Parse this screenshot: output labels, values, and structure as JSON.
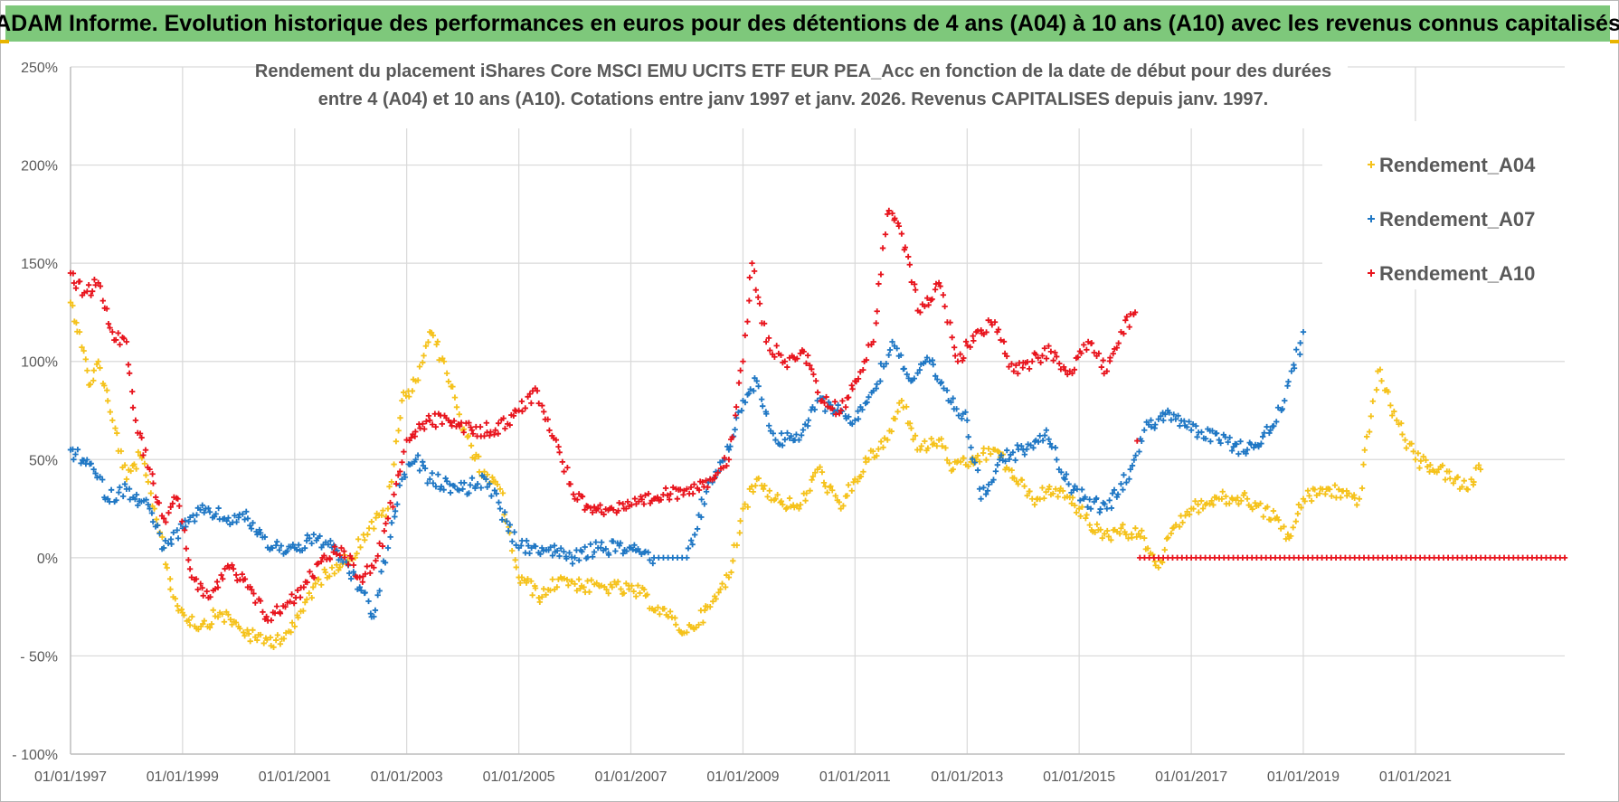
{
  "banner": {
    "text": "ADAM Informe. Evolution historique des performances en euros pour des détentions de 4 ans (A04) à 10 ans (A10) avec les revenus connus capitalisés"
  },
  "chart_data": {
    "type": "scatter",
    "title_lines": [
      "Rendement du placement iShares Core MSCI EMU UCITS ETF EUR PEA_Acc en fonction de la date de début pour des durées",
      "entre 4 (A04) et 10 ans (A10). Cotations entre janv 1997 et janv. 2026. Revenus CAPITALISES depuis janv. 1997."
    ],
    "xlabel": "",
    "ylabel": "",
    "xlim": [
      "1997-01-01",
      "2023-09-01"
    ],
    "ylim": [
      -100,
      250
    ],
    "x_tick_labels": [
      "01/01/1997",
      "01/01/1999",
      "01/01/2001",
      "01/01/2003",
      "01/01/2005",
      "01/01/2007",
      "01/01/2009",
      "01/01/2011",
      "01/01/2013",
      "01/01/2015",
      "01/01/2017",
      "01/01/2019",
      "01/01/2021"
    ],
    "y_tick_labels": [
      "- 100%",
      "- 50%",
      "0%",
      "50%",
      "100%",
      "150%",
      "200%",
      "250%"
    ],
    "y_tick_values": [
      -100,
      -50,
      0,
      50,
      100,
      150,
      200,
      250
    ],
    "grid": true,
    "legend_position": "top-right",
    "series": [
      {
        "name": "Rendement_A04",
        "color": "#f5c21b",
        "points": [
          [
            "1997-01-01",
            130
          ],
          [
            "1997-03-01",
            115
          ],
          [
            "1997-05-01",
            88
          ],
          [
            "1997-07-01",
            100
          ],
          [
            "1997-10-01",
            70
          ],
          [
            "1998-01-01",
            40
          ],
          [
            "1998-04-01",
            52
          ],
          [
            "1998-07-01",
            25
          ],
          [
            "1998-09-01",
            5
          ],
          [
            "1998-11-01",
            -20
          ],
          [
            "1999-01-01",
            -28
          ],
          [
            "1999-05-01",
            -35
          ],
          [
            "1999-09-01",
            -28
          ],
          [
            "2000-01-01",
            -35
          ],
          [
            "2000-05-01",
            -42
          ],
          [
            "2000-09-01",
            -42
          ],
          [
            "2001-01-01",
            -35
          ],
          [
            "2001-05-01",
            -15
          ],
          [
            "2001-09-01",
            -5
          ],
          [
            "2002-01-01",
            0
          ],
          [
            "2002-05-01",
            15
          ],
          [
            "2002-09-01",
            25
          ],
          [
            "2002-12-01",
            80
          ],
          [
            "2003-03-01",
            90
          ],
          [
            "2003-06-01",
            115
          ],
          [
            "2003-09-01",
            100
          ],
          [
            "2004-01-01",
            65
          ],
          [
            "2004-06-01",
            40
          ],
          [
            "2004-09-01",
            35
          ],
          [
            "2005-01-01",
            -10
          ],
          [
            "2005-06-01",
            -20
          ],
          [
            "2005-10-01",
            -10
          ],
          [
            "2006-03-01",
            -15
          ],
          [
            "2006-09-01",
            -15
          ],
          [
            "2007-03-01",
            -18
          ],
          [
            "2007-09-01",
            -30
          ],
          [
            "2008-01-01",
            -38
          ],
          [
            "2008-06-01",
            -25
          ],
          [
            "2008-10-01",
            -10
          ],
          [
            "2009-01-01",
            25
          ],
          [
            "2009-04-01",
            40
          ],
          [
            "2009-08-01",
            30
          ],
          [
            "2010-01-01",
            25
          ],
          [
            "2010-05-01",
            45
          ],
          [
            "2010-10-01",
            25
          ],
          [
            "2011-01-01",
            40
          ],
          [
            "2011-04-01",
            50
          ],
          [
            "2011-08-01",
            60
          ],
          [
            "2011-11-01",
            80
          ],
          [
            "2012-03-01",
            55
          ],
          [
            "2012-07-01",
            60
          ],
          [
            "2012-10-01",
            45
          ],
          [
            "2013-03-01",
            50
          ],
          [
            "2013-07-01",
            55
          ],
          [
            "2013-10-01",
            45
          ],
          [
            "2014-03-01",
            30
          ],
          [
            "2014-08-01",
            35
          ],
          [
            "2015-01-01",
            25
          ],
          [
            "2015-06-01",
            10
          ],
          [
            "2015-10-01",
            15
          ],
          [
            "2016-03-01",
            10
          ],
          [
            "2016-06-01",
            -5
          ],
          [
            "2016-09-01",
            15
          ],
          [
            "2017-01-01",
            25
          ],
          [
            "2017-07-01",
            30
          ],
          [
            "2018-01-01",
            30
          ],
          [
            "2018-07-01",
            20
          ],
          [
            "2018-10-01",
            10
          ],
          [
            "2019-01-01",
            30
          ],
          [
            "2019-06-01",
            35
          ],
          [
            "2020-01-01",
            30
          ],
          [
            "2020-05-01",
            95
          ],
          [
            "2020-09-01",
            70
          ],
          [
            "2021-01-01",
            50
          ],
          [
            "2021-06-01",
            45
          ],
          [
            "2021-12-01",
            35
          ],
          [
            "2022-03-01",
            45
          ]
        ]
      },
      {
        "name": "Rendement_A07",
        "color": "#1f77c4",
        "points": [
          [
            "1997-01-01",
            55
          ],
          [
            "1997-06-01",
            45
          ],
          [
            "1997-09-01",
            30
          ],
          [
            "1998-01-01",
            35
          ],
          [
            "1998-06-01",
            25
          ],
          [
            "1998-09-01",
            5
          ],
          [
            "1999-01-01",
            15
          ],
          [
            "1999-06-01",
            25
          ],
          [
            "1999-10-01",
            20
          ],
          [
            "2000-03-01",
            20
          ],
          [
            "2000-08-01",
            5
          ],
          [
            "2001-01-01",
            5
          ],
          [
            "2001-06-01",
            10
          ],
          [
            "2001-11-01",
            0
          ],
          [
            "2002-03-01",
            -15
          ],
          [
            "2002-06-01",
            -30
          ],
          [
            "2002-09-01",
            5
          ],
          [
            "2002-12-01",
            40
          ],
          [
            "2003-03-01",
            50
          ],
          [
            "2003-06-01",
            40
          ],
          [
            "2004-01-01",
            35
          ],
          [
            "2004-06-01",
            40
          ],
          [
            "2004-09-01",
            25
          ],
          [
            "2005-01-01",
            5
          ],
          [
            "2005-06-01",
            5
          ],
          [
            "2006-01-01",
            0
          ],
          [
            "2006-06-01",
            5
          ],
          [
            "2007-01-01",
            5
          ],
          [
            "2007-06-01",
            0
          ],
          [
            "2008-01-01",
            0
          ],
          [
            "2008-06-01",
            40
          ],
          [
            "2008-10-01",
            55
          ],
          [
            "2009-01-01",
            80
          ],
          [
            "2009-04-01",
            90
          ],
          [
            "2009-08-01",
            60
          ],
          [
            "2010-01-01",
            60
          ],
          [
            "2010-05-01",
            80
          ],
          [
            "2010-10-01",
            75
          ],
          [
            "2011-01-01",
            70
          ],
          [
            "2011-05-01",
            85
          ],
          [
            "2011-09-01",
            110
          ],
          [
            "2012-01-01",
            90
          ],
          [
            "2012-05-01",
            100
          ],
          [
            "2012-09-01",
            80
          ],
          [
            "2013-01-01",
            70
          ],
          [
            "2013-04-01",
            30
          ],
          [
            "2013-08-01",
            50
          ],
          [
            "2014-01-01",
            55
          ],
          [
            "2014-06-01",
            65
          ],
          [
            "2014-10-01",
            40
          ],
          [
            "2015-02-01",
            30
          ],
          [
            "2015-07-01",
            25
          ],
          [
            "2015-12-01",
            45
          ],
          [
            "2016-03-01",
            65
          ],
          [
            "2016-08-01",
            75
          ],
          [
            "2017-01-01",
            65
          ],
          [
            "2017-07-01",
            60
          ],
          [
            "2018-01-01",
            55
          ],
          [
            "2018-06-01",
            65
          ],
          [
            "2018-09-01",
            80
          ],
          [
            "2019-01-01",
            115
          ]
        ]
      },
      {
        "name": "Rendement_A10",
        "color": "#e8141d",
        "points": [
          [
            "1997-01-01",
            145
          ],
          [
            "1997-04-01",
            135
          ],
          [
            "1997-07-01",
            140
          ],
          [
            "1997-10-01",
            115
          ],
          [
            "1998-01-01",
            110
          ],
          [
            "1998-03-01",
            70
          ],
          [
            "1998-06-01",
            45
          ],
          [
            "1998-09-01",
            20
          ],
          [
            "1998-12-01",
            30
          ],
          [
            "1999-03-01",
            -10
          ],
          [
            "1999-07-01",
            -20
          ],
          [
            "1999-11-01",
            -5
          ],
          [
            "2000-03-01",
            -15
          ],
          [
            "2000-07-01",
            -30
          ],
          [
            "2000-11-01",
            -25
          ],
          [
            "2001-03-01",
            -15
          ],
          [
            "2001-07-01",
            0
          ],
          [
            "2001-11-01",
            5
          ],
          [
            "2002-03-01",
            -10
          ],
          [
            "2002-06-01",
            -5
          ],
          [
            "2002-09-01",
            20
          ],
          [
            "2003-01-01",
            60
          ],
          [
            "2003-06-01",
            70
          ],
          [
            "2003-10-01",
            70
          ],
          [
            "2004-03-01",
            65
          ],
          [
            "2004-08-01",
            65
          ],
          [
            "2005-01-01",
            75
          ],
          [
            "2005-05-01",
            85
          ],
          [
            "2005-09-01",
            60
          ],
          [
            "2006-01-01",
            30
          ],
          [
            "2006-06-01",
            25
          ],
          [
            "2006-12-01",
            25
          ],
          [
            "2007-06-01",
            30
          ],
          [
            "2008-01-01",
            35
          ],
          [
            "2008-06-01",
            40
          ],
          [
            "2008-10-01",
            50
          ],
          [
            "2009-01-01",
            100
          ],
          [
            "2009-03-01",
            150
          ],
          [
            "2009-06-01",
            110
          ],
          [
            "2009-10-01",
            100
          ],
          [
            "2010-02-01",
            105
          ],
          [
            "2010-06-01",
            80
          ],
          [
            "2010-10-01",
            75
          ],
          [
            "2011-01-01",
            90
          ],
          [
            "2011-05-01",
            110
          ],
          [
            "2011-08-01",
            175
          ],
          [
            "2011-11-01",
            165
          ],
          [
            "2012-03-01",
            125
          ],
          [
            "2012-07-01",
            140
          ],
          [
            "2012-11-01",
            100
          ],
          [
            "2013-03-01",
            115
          ],
          [
            "2013-07-01",
            120
          ],
          [
            "2013-11-01",
            95
          ],
          [
            "2014-03-01",
            100
          ],
          [
            "2014-07-01",
            105
          ],
          [
            "2014-11-01",
            95
          ],
          [
            "2015-03-01",
            110
          ],
          [
            "2015-07-01",
            95
          ],
          [
            "2015-10-01",
            115
          ],
          [
            "2016-01-01",
            125
          ],
          [
            "2016-02-01",
            0
          ],
          [
            "2017-01-01",
            0
          ],
          [
            "2018-01-01",
            0
          ],
          [
            "2019-01-01",
            0
          ],
          [
            "2020-01-01",
            0
          ],
          [
            "2021-01-01",
            0
          ],
          [
            "2022-01-01",
            0
          ],
          [
            "2023-01-01",
            0
          ],
          [
            "2023-09-01",
            0
          ]
        ]
      }
    ]
  }
}
